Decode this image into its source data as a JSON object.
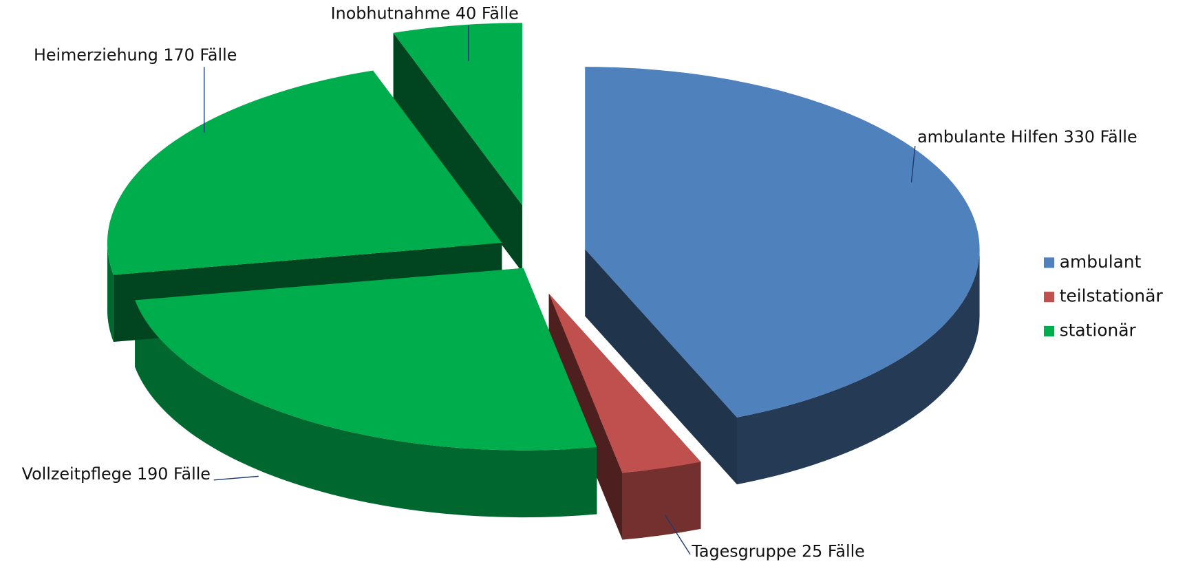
{
  "chart_data": {
    "type": "pie3d",
    "categories": [
      "ambulante Hilfen",
      "Tagesgruppe",
      "Vollzeitpflege",
      "Heimerziehung",
      "Inobhutnahme"
    ],
    "values": [
      330,
      25,
      190,
      170,
      40
    ],
    "value_labels": [
      "330 Fälle",
      "25 Fälle",
      "190 Fälle",
      "170 Fälle",
      "40 Fälle"
    ],
    "colors": [
      "#4f81bd",
      "#c0504d",
      "#00ad4d",
      "#00ad4d",
      "#00ad4d"
    ],
    "legend_position": "right",
    "legend": [
      {
        "name": "ambulant",
        "color": "#4f81bd"
      },
      {
        "name": "teilstationär",
        "color": "#c0504d"
      },
      {
        "name": "stationär",
        "color": "#00ad4d"
      }
    ]
  }
}
